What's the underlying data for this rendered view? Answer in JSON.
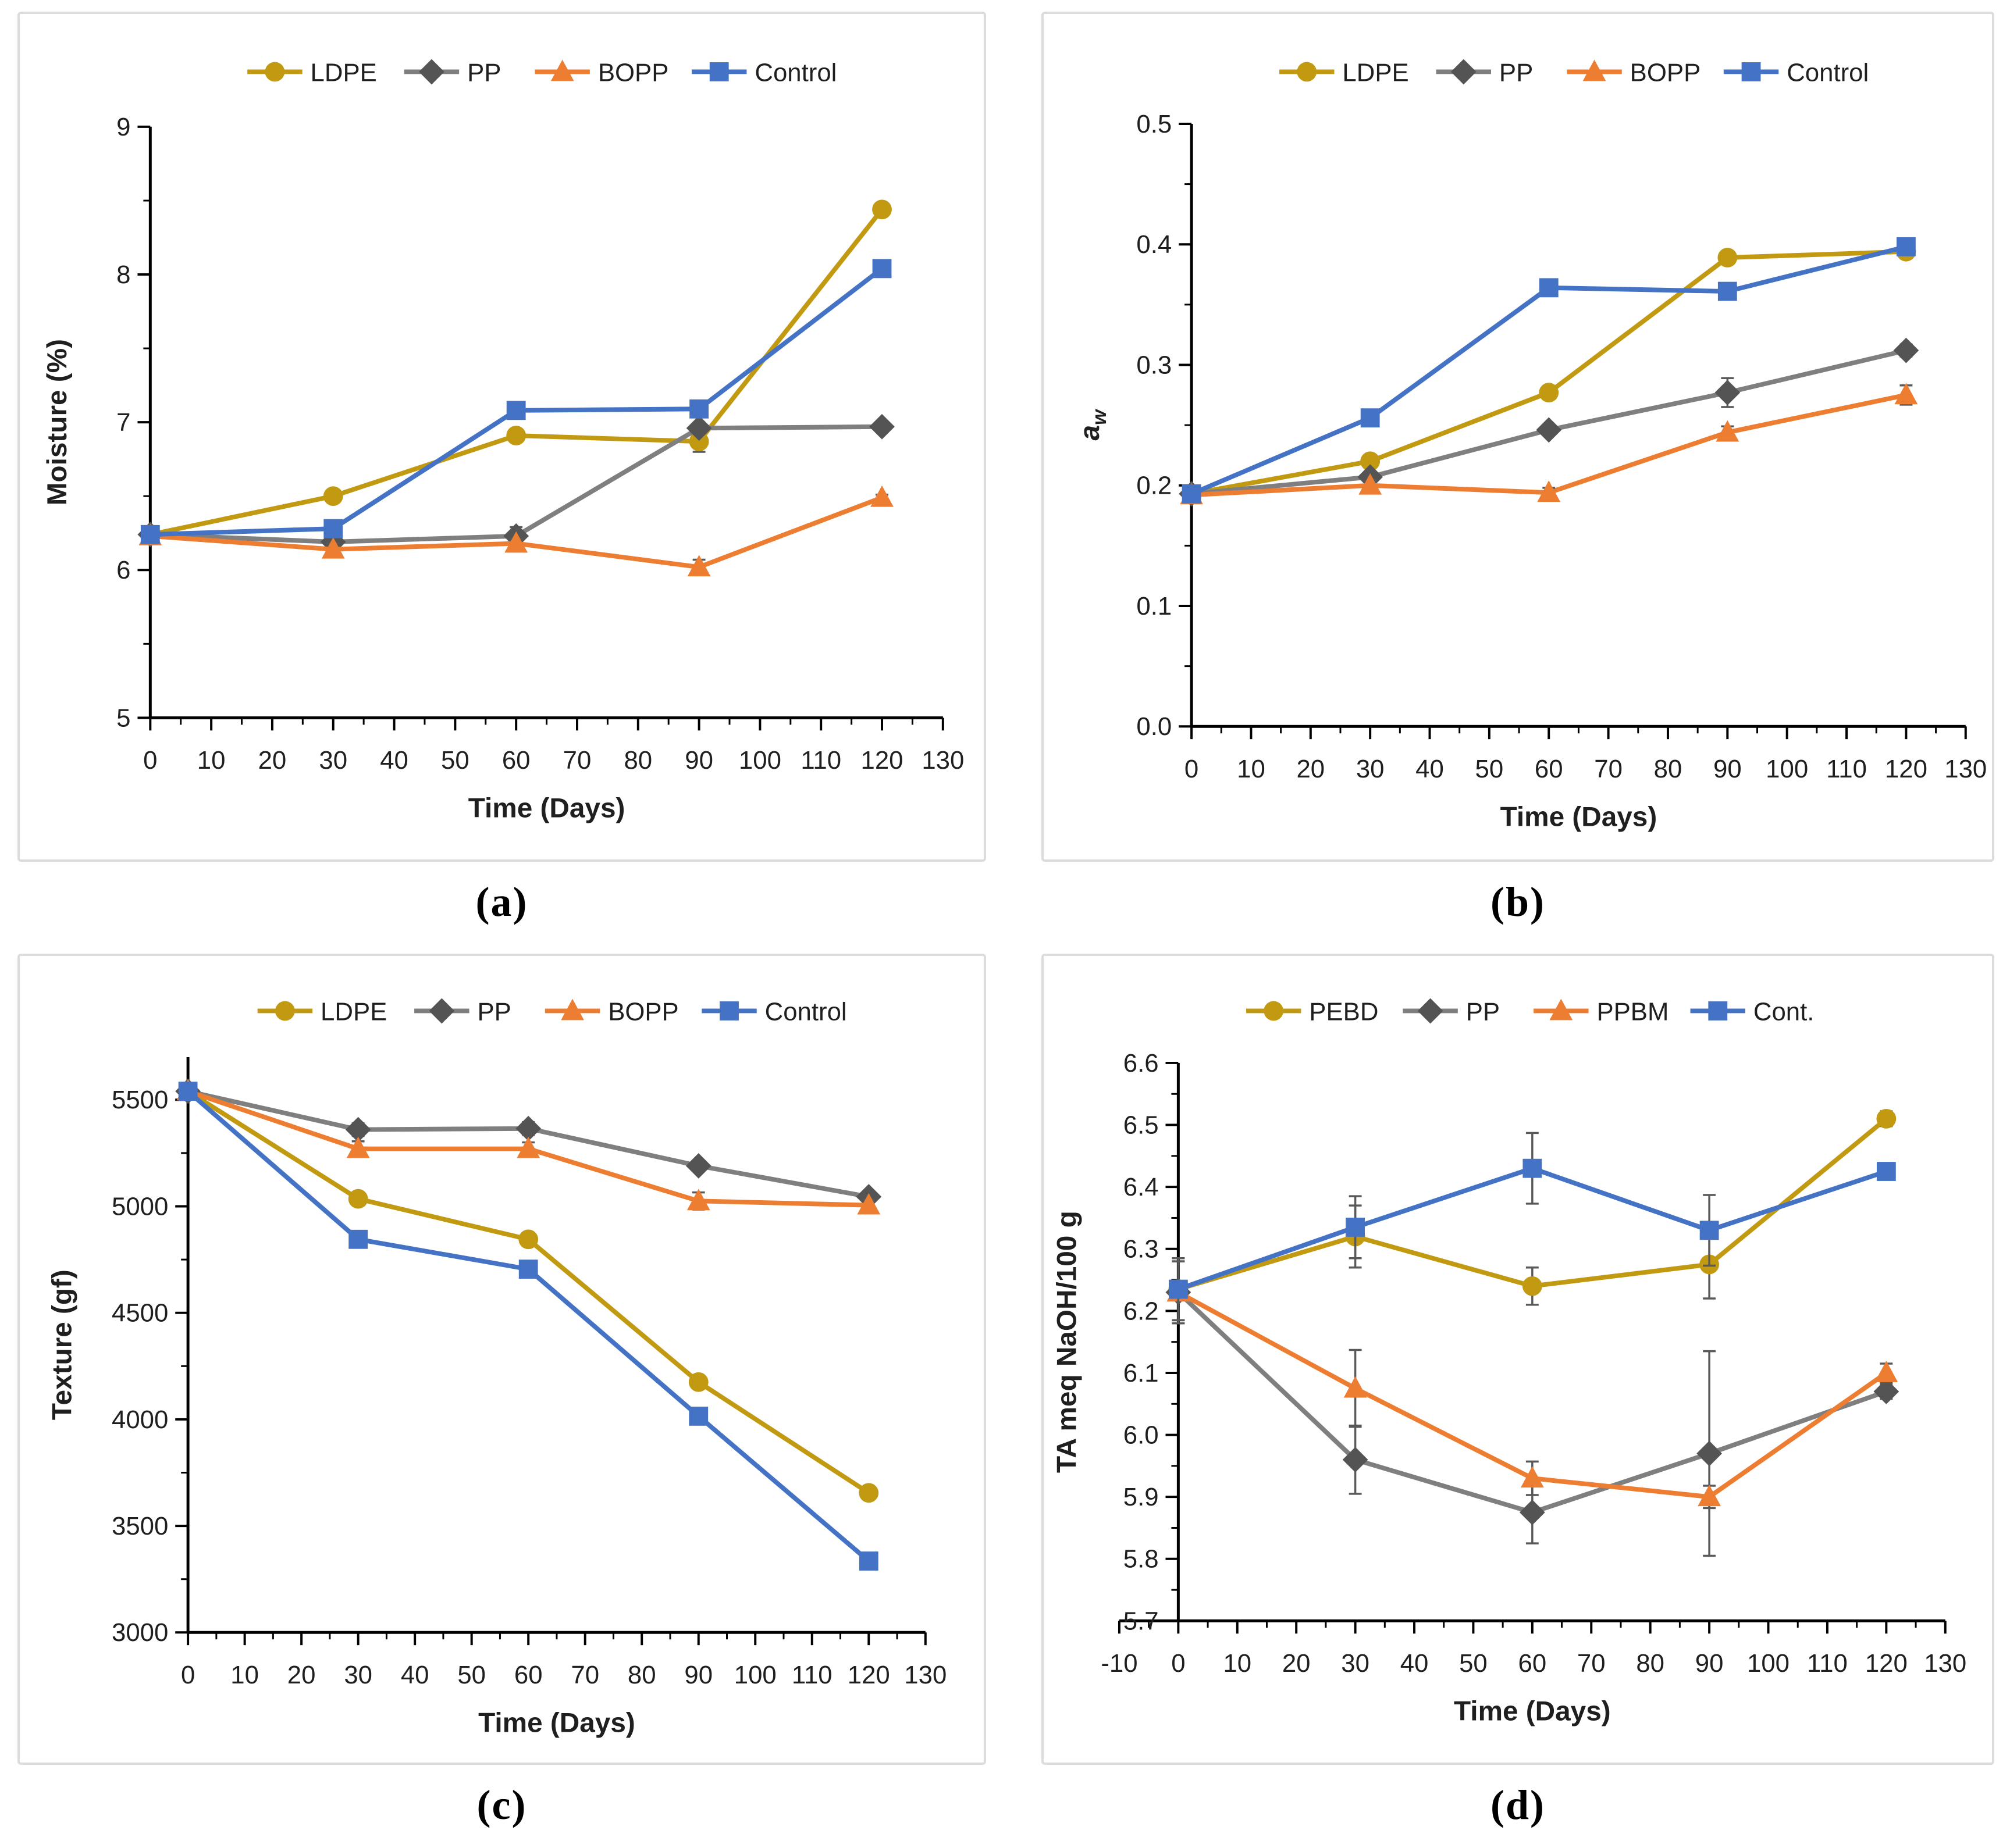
{
  "figure_title": "",
  "chart_data": [
    {
      "id": "a",
      "type": "line",
      "caption": "(a)",
      "xlabel": "Time (Days)",
      "ylabel": "Moisture (%)",
      "x": [
        0,
        30,
        60,
        90,
        120
      ],
      "xlim": [
        0,
        130
      ],
      "xticks": [
        0,
        10,
        20,
        30,
        40,
        50,
        60,
        70,
        80,
        90,
        100,
        110,
        120,
        130
      ],
      "x_minor_step": 5,
      "ylim": [
        5,
        9
      ],
      "yticks": [
        5,
        6,
        7,
        8,
        9
      ],
      "y_minor_step": 0.5,
      "ytick_decimals": 0,
      "error_bar_color": "#595959",
      "legend_position": "top",
      "series": [
        {
          "name": "LDPE",
          "color": "#C29A12",
          "marker": "circle",
          "values": [
            6.24,
            6.5,
            6.91,
            6.87,
            8.44
          ],
          "err": [
            0.02,
            0.02,
            0.03,
            0.07,
            0.02
          ]
        },
        {
          "name": "PP",
          "color": "#7F7F7F",
          "marker": "diamond",
          "marker_color": "#545454",
          "values": [
            6.24,
            6.19,
            6.23,
            6.96,
            6.97
          ],
          "err": [
            0.02,
            0.05,
            0.06,
            0.02,
            0.02
          ]
        },
        {
          "name": "BOPP",
          "color": "#ED7D31",
          "marker": "triangle",
          "values": [
            6.23,
            6.14,
            6.18,
            6.02,
            6.49
          ],
          "err": [
            0.02,
            0.04,
            0.03,
            0.05,
            0.02
          ]
        },
        {
          "name": "Control",
          "color": "#4472C4",
          "marker": "square",
          "values": [
            6.24,
            6.28,
            7.08,
            7.09,
            8.04
          ],
          "err": [
            0.02,
            0.02,
            0.02,
            0.02,
            0.02
          ]
        }
      ]
    },
    {
      "id": "b",
      "type": "line",
      "caption": "(b)",
      "xlabel": "Time (Days)",
      "ylabel": "a",
      "ylabel_sub": "w",
      "ylabel_italic": true,
      "x": [
        0,
        30,
        60,
        90,
        120
      ],
      "xlim": [
        0,
        130
      ],
      "xticks": [
        0,
        10,
        20,
        30,
        40,
        50,
        60,
        70,
        80,
        90,
        100,
        110,
        120,
        130
      ],
      "x_minor_step": 5,
      "ylim": [
        0.0,
        0.5
      ],
      "yticks": [
        0.0,
        0.1,
        0.2,
        0.3,
        0.4,
        0.5
      ],
      "y_minor_step": 0.05,
      "ytick_decimals": 1,
      "error_bar_color": "#595959",
      "legend_position": "top",
      "series": [
        {
          "name": "LDPE",
          "color": "#C29A12",
          "marker": "circle",
          "values": [
            0.193,
            0.22,
            0.277,
            0.389,
            0.394
          ],
          "err": [
            0.003,
            0.004,
            0.004,
            0.004,
            0.003
          ]
        },
        {
          "name": "PP",
          "color": "#7F7F7F",
          "marker": "diamond",
          "marker_color": "#545454",
          "values": [
            0.193,
            0.207,
            0.246,
            0.277,
            0.312
          ],
          "err": [
            0.003,
            0.004,
            0.004,
            0.012,
            0.005
          ]
        },
        {
          "name": "BOPP",
          "color": "#ED7D31",
          "marker": "triangle",
          "values": [
            0.192,
            0.2,
            0.194,
            0.244,
            0.275
          ],
          "err": [
            0.003,
            0.004,
            0.004,
            0.005,
            0.008
          ]
        },
        {
          "name": "Control",
          "color": "#4472C4",
          "marker": "square",
          "values": [
            0.193,
            0.256,
            0.364,
            0.361,
            0.398
          ],
          "err": [
            0.003,
            0.003,
            0.003,
            0.004,
            0.004
          ]
        }
      ]
    },
    {
      "id": "c",
      "type": "line",
      "caption": "(c)",
      "xlabel": "Time (Days)",
      "ylabel": "Texture (gf)",
      "x": [
        0,
        30,
        60,
        90,
        120
      ],
      "xlim": [
        0,
        130
      ],
      "xticks": [
        0,
        10,
        20,
        30,
        40,
        50,
        60,
        70,
        80,
        90,
        100,
        110,
        120,
        130
      ],
      "x_minor_step": 5,
      "ylim": [
        3000,
        5700
      ],
      "yticks": [
        3000,
        3500,
        4000,
        4500,
        5000,
        5500
      ],
      "y_minor_step": 250,
      "ytick_decimals": 0,
      "error_bar_color": "#595959",
      "legend_position": "top",
      "series": [
        {
          "name": "LDPE",
          "color": "#C29A12",
          "marker": "circle",
          "values": [
            5540,
            5035,
            4845,
            4175,
            3655
          ],
          "err": [
            20,
            30,
            20,
            25,
            20
          ]
        },
        {
          "name": "PP",
          "color": "#7F7F7F",
          "marker": "diamond",
          "marker_color": "#545454",
          "values": [
            5540,
            5360,
            5365,
            5190,
            5045
          ],
          "err": [
            20,
            30,
            30,
            25,
            25
          ]
        },
        {
          "name": "BOPP",
          "color": "#ED7D31",
          "marker": "triangle",
          "values": [
            5540,
            5270,
            5270,
            5025,
            5005
          ],
          "err": [
            20,
            35,
            30,
            40,
            25
          ]
        },
        {
          "name": "Control",
          "color": "#4472C4",
          "marker": "square",
          "values": [
            5540,
            4845,
            4705,
            4015,
            3335
          ],
          "err": [
            20,
            25,
            25,
            20,
            20
          ]
        }
      ]
    },
    {
      "id": "d",
      "type": "line",
      "caption": "(d)",
      "xlabel": "Time (Days)",
      "ylabel": "TA meq NaOH/100 g",
      "x": [
        0,
        30,
        60,
        90,
        120
      ],
      "xlim": [
        -10,
        130
      ],
      "xticks": [
        -10,
        0,
        10,
        20,
        30,
        40,
        50,
        60,
        70,
        80,
        90,
        100,
        110,
        120,
        130
      ],
      "x_minor_step": 5,
      "y_axis_at": 0,
      "ylim": [
        5.7,
        6.6
      ],
      "yticks": [
        5.7,
        5.8,
        5.9,
        6.0,
        6.1,
        6.2,
        6.3,
        6.4,
        6.5,
        6.6
      ],
      "y_minor_step": 0.05,
      "ytick_decimals": 1,
      "error_bar_color": "#595959",
      "legend_position": "top",
      "series": [
        {
          "name": "PEBD",
          "color": "#C29A12",
          "marker": "circle",
          "values": [
            6.235,
            6.32,
            6.24,
            6.275,
            6.51
          ],
          "err": [
            0.05,
            0.05,
            0.03,
            0.055,
            0.012
          ]
        },
        {
          "name": "PP",
          "color": "#7F7F7F",
          "marker": "diamond",
          "marker_color": "#545454",
          "values": [
            6.23,
            5.96,
            5.875,
            5.97,
            6.07
          ],
          "err": [
            0.05,
            0.055,
            0.05,
            0.165,
            0.012
          ]
        },
        {
          "name": "PPBM",
          "color": "#ED7D31",
          "marker": "triangle",
          "values": [
            6.23,
            6.075,
            5.93,
            5.9,
            6.1
          ],
          "err": [
            0.05,
            0.062,
            0.027,
            0.018,
            0.015
          ]
        },
        {
          "name": "Cont.",
          "color": "#4472C4",
          "marker": "square",
          "values": [
            6.235,
            6.335,
            6.43,
            6.33,
            6.425
          ],
          "err": [
            0.05,
            0.05,
            0.057,
            0.057,
            0.012
          ]
        }
      ]
    }
  ]
}
